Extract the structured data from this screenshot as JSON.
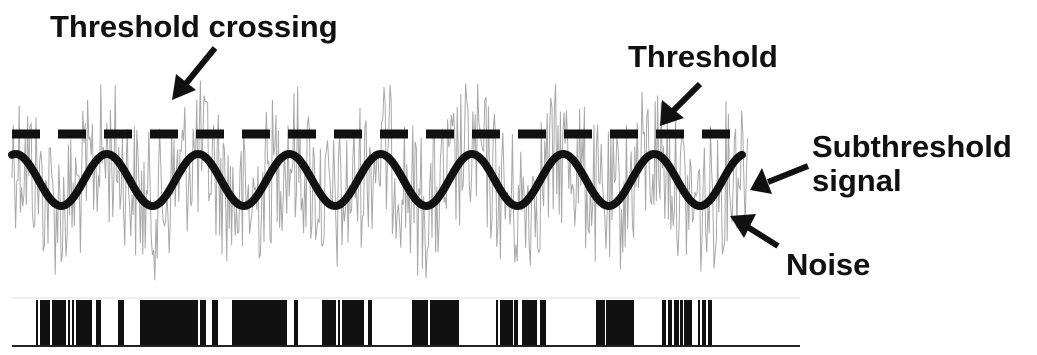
{
  "labels": {
    "threshold_crossing": "Threshold crossing",
    "threshold": "Threshold",
    "subthreshold_signal_line1": "Subthreshold",
    "subthreshold_signal_line2": "signal",
    "noise": "Noise"
  },
  "signal": {
    "cycles": 8,
    "color": "#111111"
  },
  "noise": {
    "color": "#a8a8a8"
  },
  "threshold_line": {
    "style": "dashed",
    "color": "#111111"
  },
  "spike_train": {
    "color": "#111111"
  }
}
